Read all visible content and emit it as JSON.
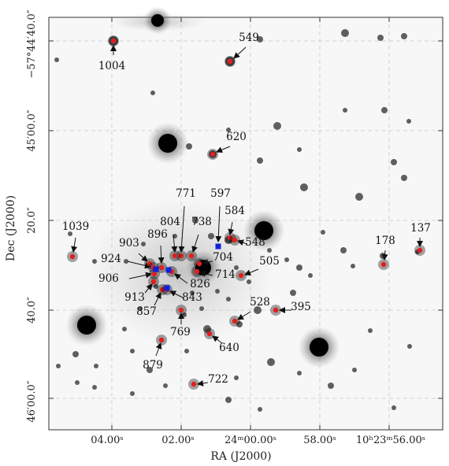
{
  "axes": {
    "xlabel": "RA (J2000)",
    "ylabel": "Dec (J2000)",
    "x_ticks": [
      "04.00ˢ",
      "02.00ˢ",
      "24ᵐ00.00ˢ",
      "58.00ˢ",
      "10ʰ23ᵐ56.00ˢ"
    ],
    "y_ticks": [
      "−57°44′40.0″",
      "45′00.0″",
      "20.0″",
      "40.0″",
      "46′00.0″"
    ]
  },
  "colors": {
    "red_marker": "#e02020",
    "blue_marker": "#1020e0",
    "grid": "#c8c8c8",
    "arrow": "#111111"
  },
  "red_stars": [
    "1004",
    "549",
    "620",
    "1039",
    "903",
    "924",
    "906",
    "913",
    "857",
    "771",
    "804",
    "738",
    "896",
    "879",
    "769",
    "704",
    "714",
    "826",
    "843",
    "584",
    "548",
    "505",
    "528",
    "395",
    "640",
    "722",
    "178",
    "137"
  ],
  "blue_stars": [
    "597",
    "896",
    "826",
    "843"
  ],
  "labels": [
    {
      "id": "1004"
    },
    {
      "id": "549"
    },
    {
      "id": "620"
    },
    {
      "id": "1039"
    },
    {
      "id": "903"
    },
    {
      "id": "924"
    },
    {
      "id": "906"
    },
    {
      "id": "913"
    },
    {
      "id": "857"
    },
    {
      "id": "896"
    },
    {
      "id": "804"
    },
    {
      "id": "771"
    },
    {
      "id": "738"
    },
    {
      "id": "597"
    },
    {
      "id": "584"
    },
    {
      "id": "548"
    },
    {
      "id": "704"
    },
    {
      "id": "714"
    },
    {
      "id": "826"
    },
    {
      "id": "843"
    },
    {
      "id": "505"
    },
    {
      "id": "528"
    },
    {
      "id": "395"
    },
    {
      "id": "769"
    },
    {
      "id": "640"
    },
    {
      "id": "879"
    },
    {
      "id": "722"
    },
    {
      "id": "178"
    },
    {
      "id": "137"
    }
  ]
}
